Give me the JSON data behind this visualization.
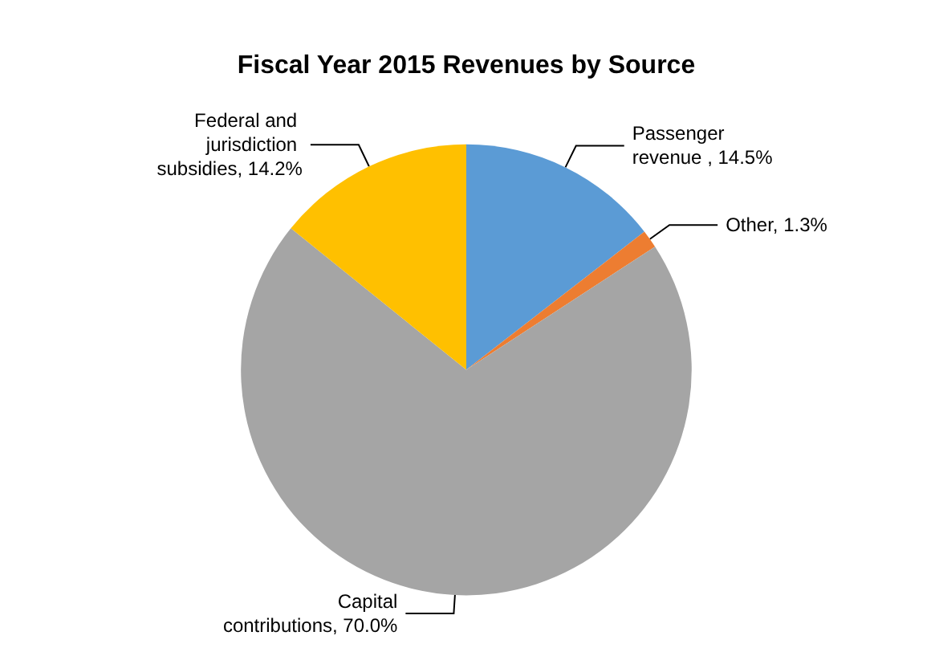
{
  "chart_data": {
    "type": "pie",
    "title": "Fiscal Year 2015 Revenues by Source",
    "categories": [
      "Passenger revenue ",
      "Other",
      "Capital contributions",
      "Federal and jurisdiction subsidies"
    ],
    "values": [
      14.5,
      1.3,
      70.0,
      14.2
    ],
    "colors": [
      "#5b9bd5",
      "#ed7d31",
      "#a5a5a5",
      "#ffc000"
    ],
    "value_labels": [
      "14.5%",
      "1.3%",
      "70.0%",
      "14.2%"
    ],
    "legend": false
  }
}
